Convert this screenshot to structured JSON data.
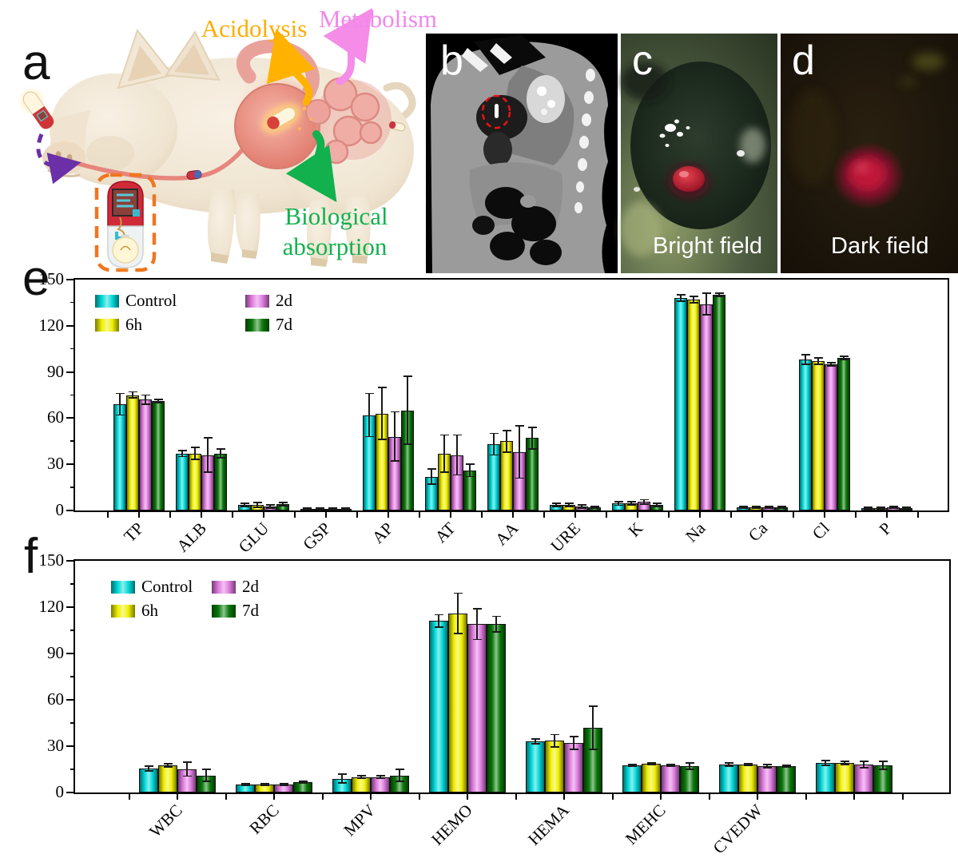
{
  "panels": {
    "a": {
      "label": "a",
      "annotations": {
        "acidolysis": "Acidolysis",
        "metabolism": "Metabolism",
        "bio1": "Biological",
        "bio2": "absorption"
      },
      "colors": {
        "acidolysis": "#FFAC00",
        "metabolism": "#F287EC",
        "absorption": "#12B14E",
        "dashed_box": "#F0761F",
        "ingest_arrow": "#6B2FA8"
      }
    },
    "b": {
      "label": "b"
    },
    "c": {
      "label": "c",
      "caption": "Bright field"
    },
    "d": {
      "label": "d",
      "caption": "Dark field"
    },
    "e": {
      "label": "e"
    },
    "f": {
      "label": "f"
    }
  },
  "chart_data": [
    {
      "type": "bar",
      "panel": "e",
      "title": "",
      "xlabel": "",
      "ylabel": "",
      "ylim": [
        0,
        150
      ],
      "yticks": [
        0,
        30,
        60,
        90,
        120,
        150
      ],
      "grid": false,
      "legend_position": "top-left",
      "categories": [
        "TP",
        "ALB",
        "GLU",
        "GSP",
        "AP",
        "AT",
        "AA",
        "URE",
        "K",
        "Na",
        "Ca",
        "Cl",
        "P"
      ],
      "series": [
        {
          "name": "Control",
          "color": "#00D9D9",
          "values": [
            69,
            37,
            3.5,
            1.2,
            62,
            22,
            43,
            3.5,
            4.5,
            138,
            2,
            98,
            1.5
          ],
          "errors": [
            7,
            2,
            1,
            0.4,
            14,
            5,
            7,
            1,
            1.2,
            2,
            0.5,
            3,
            0.5
          ]
        },
        {
          "name": "6h",
          "color": "#F0F000",
          "values": [
            75,
            37,
            3.5,
            1,
            63,
            37,
            45,
            3.5,
            4.5,
            137,
            2,
            97,
            1.5
          ],
          "errors": [
            2,
            4,
            1.5,
            0.3,
            17,
            12,
            7,
            1,
            1,
            2,
            0.5,
            2,
            0.5
          ]
        },
        {
          "name": "2d",
          "color": "#E07CE0",
          "values": [
            72,
            36,
            2.5,
            1,
            48,
            36,
            38,
            2.5,
            5.5,
            134,
            2,
            95,
            2
          ],
          "errors": [
            3,
            11,
            1,
            0.3,
            16,
            13,
            17,
            1,
            1.5,
            7,
            0.5,
            1,
            0.5
          ]
        },
        {
          "name": "7d",
          "color": "#0A7A0A",
          "values": [
            71,
            37,
            4,
            1,
            65,
            26,
            47,
            2,
            3.5,
            140,
            2,
            99,
            1.5
          ],
          "errors": [
            1,
            3,
            1,
            0.3,
            22,
            4,
            7,
            0.5,
            1,
            1,
            0.5,
            1,
            0.5
          ]
        }
      ]
    },
    {
      "type": "bar",
      "panel": "f",
      "title": "",
      "xlabel": "",
      "ylabel": "",
      "ylim": [
        0,
        150
      ],
      "yticks": [
        0,
        30,
        60,
        90,
        120,
        150
      ],
      "grid": false,
      "legend_position": "top-left",
      "categories": [
        "WBC",
        "RBC",
        "MPV",
        "HEMO",
        "HEMA",
        "MEHC",
        "CVEDW",
        ""
      ],
      "series": [
        {
          "name": "Control",
          "color": "#00D9D9",
          "values": [
            15.5,
            5,
            9,
            111,
            33,
            17.5,
            18,
            19
          ],
          "errors": [
            1.5,
            0.5,
            3,
            4,
            1.5,
            0.5,
            1,
            1.5
          ]
        },
        {
          "name": "6h",
          "color": "#F0F000",
          "values": [
            17.5,
            5,
            10,
            116,
            33.5,
            18.5,
            18,
            19
          ],
          "errors": [
            1,
            0.5,
            1,
            13,
            4,
            0.5,
            0.5,
            1
          ]
        },
        {
          "name": "2d",
          "color": "#E07CE0",
          "values": [
            15,
            5,
            10,
            109,
            32,
            17.5,
            17,
            18
          ],
          "errors": [
            4.5,
            0.5,
            1,
            10,
            4,
            0.5,
            1,
            2
          ]
        },
        {
          "name": "7d",
          "color": "#0A7A0A",
          "values": [
            11,
            6.5,
            11,
            109,
            42,
            17,
            17,
            17.5
          ],
          "errors": [
            4,
            0.5,
            4,
            5,
            14,
            2,
            0.5,
            2.5
          ]
        }
      ]
    }
  ]
}
